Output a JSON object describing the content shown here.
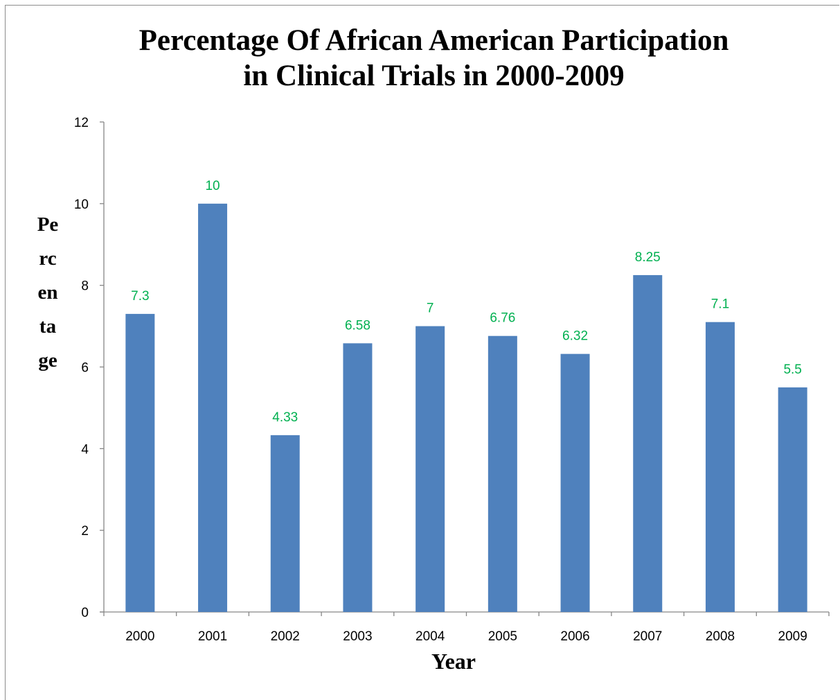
{
  "chart_data": {
    "type": "bar",
    "title": "Percentage Of African American Participation in Clinical Trials in 2000-2009",
    "title_lines": [
      "Percentage Of African American Participation",
      "in Clinical Trials in 2000-2009"
    ],
    "xlabel": "Year",
    "ylabel": "Percentage",
    "categories": [
      "2000",
      "2001",
      "2002",
      "2003",
      "2004",
      "2005",
      "2006",
      "2007",
      "2008",
      "2009"
    ],
    "values": [
      7.3,
      10,
      4.33,
      6.58,
      7,
      6.76,
      6.32,
      8.25,
      7.1,
      5.5
    ],
    "data_labels": [
      "7.3",
      "10",
      "4.33",
      "6.58",
      "7",
      "6.76",
      "6.32",
      "8.25",
      "7.1",
      "5.5"
    ],
    "ylim": [
      0,
      12
    ],
    "yticks": [
      "0",
      "2",
      "4",
      "6",
      "8",
      "10",
      "12"
    ],
    "grid": false,
    "legend": "none",
    "colors": {
      "bar": "#4f81bd",
      "data_label": "#00b050",
      "axis": "#868686"
    }
  }
}
